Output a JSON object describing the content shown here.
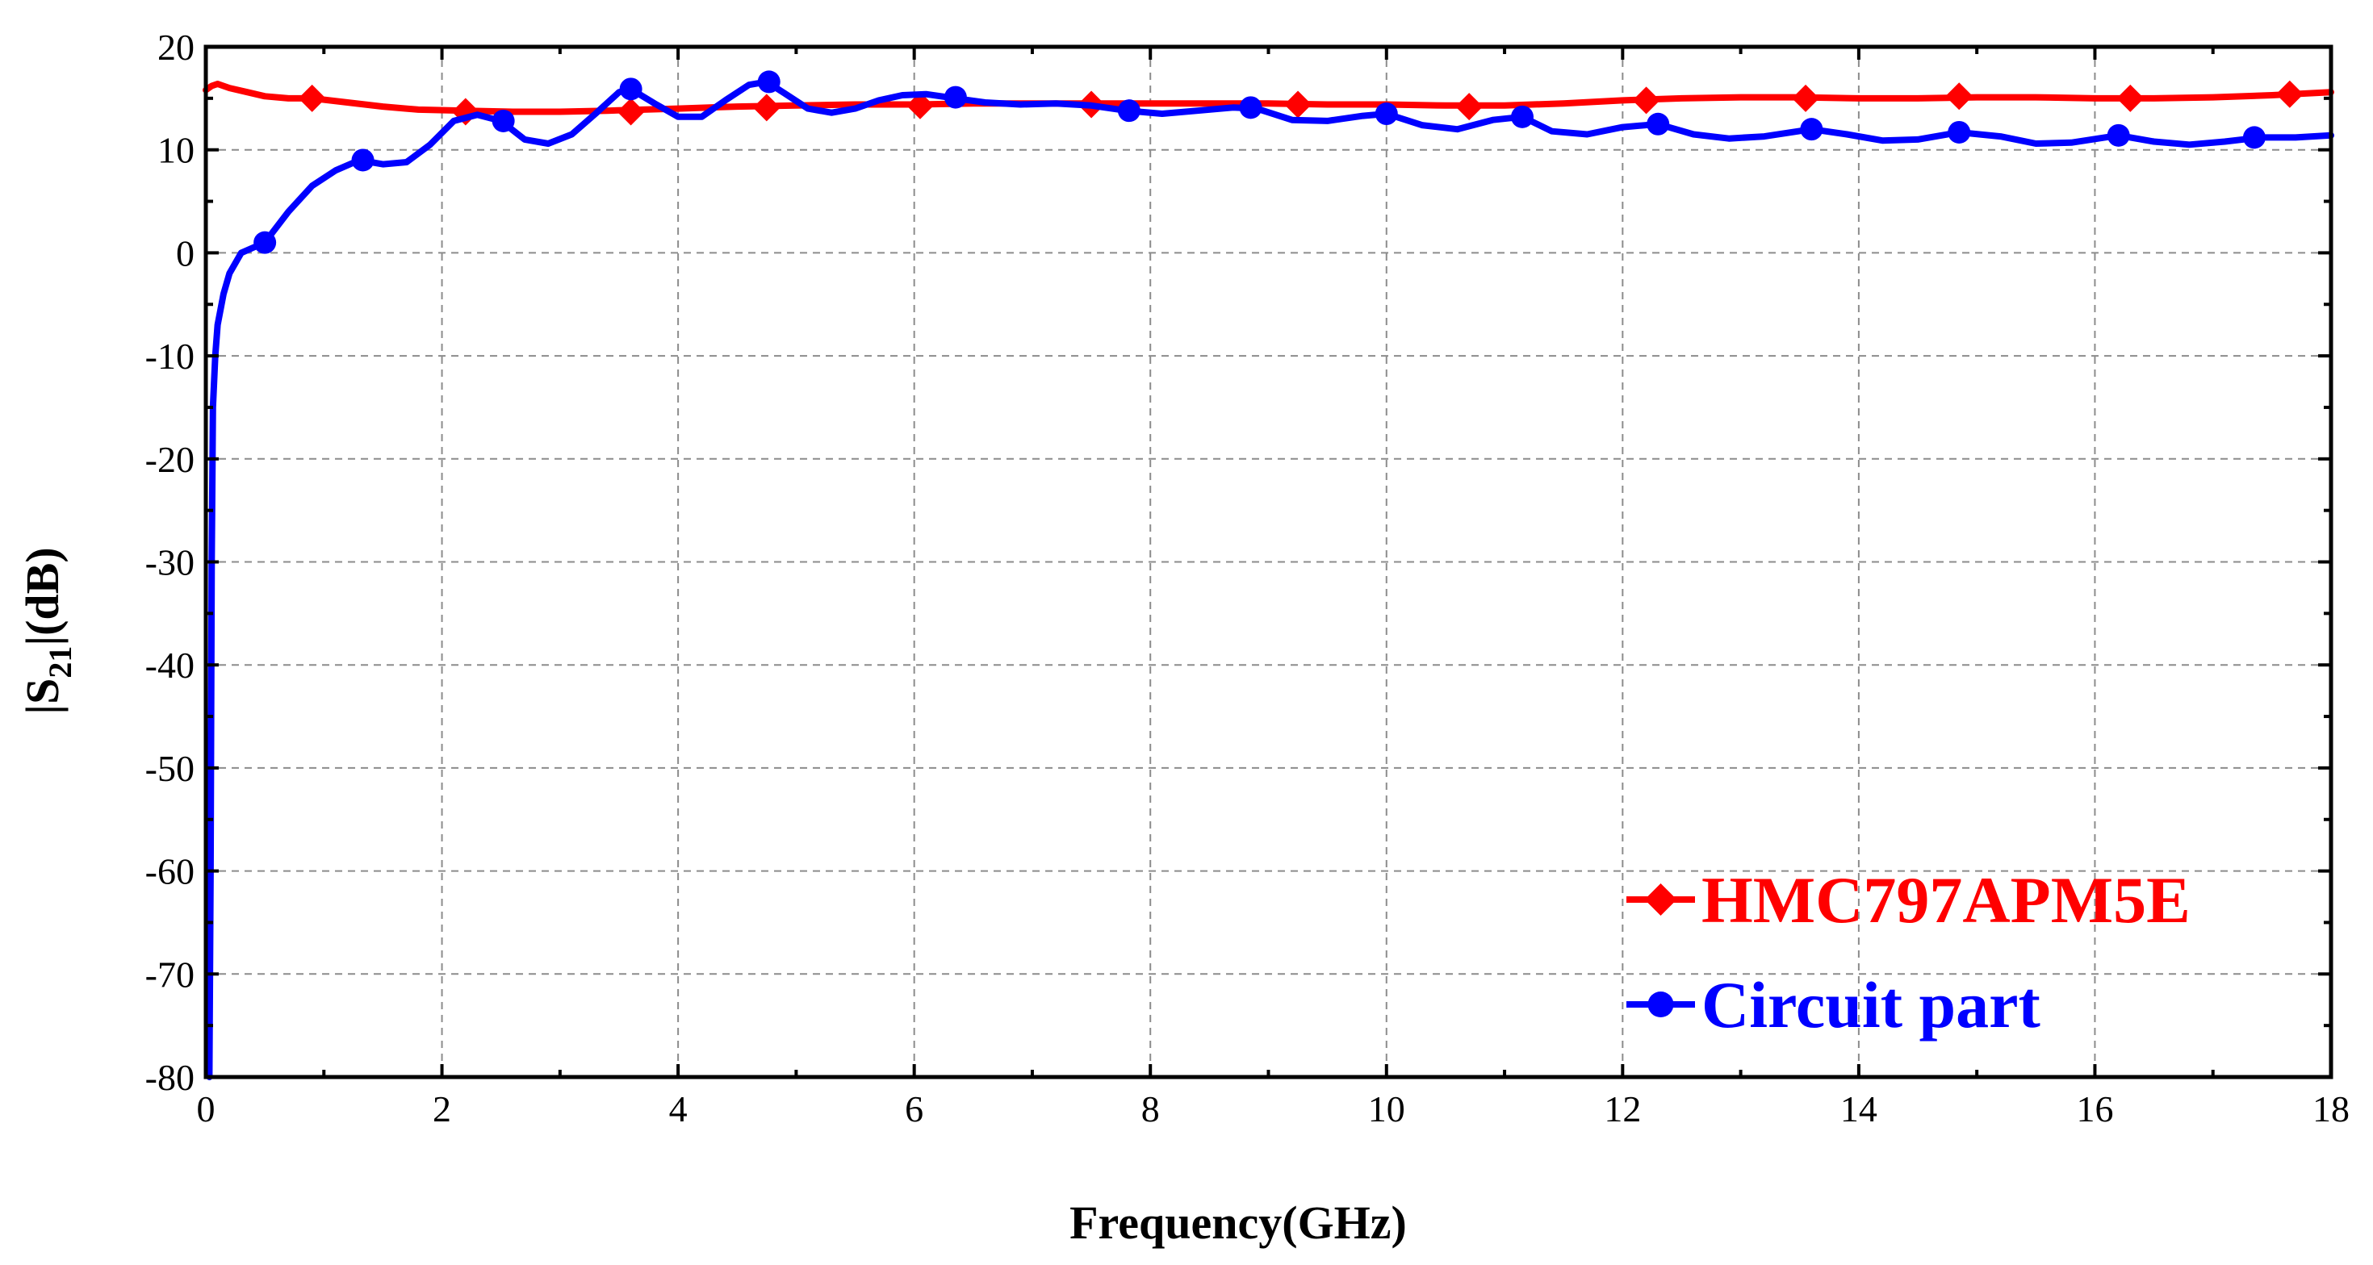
{
  "chart_data": {
    "type": "line",
    "xlabel": "Frequency(GHz)",
    "ylabel_main": "|S",
    "ylabel_sub": "21",
    "ylabel_tail": "|(dB)",
    "xlim": [
      0,
      18
    ],
    "ylim": [
      -80,
      20
    ],
    "x_ticks": [
      0,
      2,
      4,
      6,
      8,
      10,
      12,
      14,
      16,
      18
    ],
    "x_tick_labels": [
      "0",
      "2",
      "4",
      "6",
      "8",
      "10",
      "12",
      "14",
      "16",
      "18"
    ],
    "y_ticks": [
      -80,
      -70,
      -60,
      -50,
      -40,
      -30,
      -20,
      -10,
      0,
      10,
      20
    ],
    "y_tick_labels": [
      "-80",
      "-70",
      "-60",
      "-50",
      "-40",
      "-30",
      "-20",
      "-10",
      "0",
      "10",
      "20"
    ],
    "grid": true,
    "legend_position": "bottom-right",
    "series": [
      {
        "name": "HMC797APM5E",
        "color": "#ff0000",
        "marker": "diamond",
        "curve_x": [
          0,
          0.05,
          0.1,
          0.2,
          0.35,
          0.5,
          0.7,
          0.9,
          1.2,
          1.5,
          1.8,
          2.2,
          2.6,
          3.0,
          3.4,
          3.7,
          4.0,
          4.5,
          5.0,
          5.5,
          6.0,
          6.5,
          7.0,
          7.5,
          8.0,
          8.5,
          9.0,
          9.5,
          10.0,
          10.5,
          11.0,
          11.5,
          12.0,
          12.5,
          13.0,
          13.5,
          14.0,
          14.5,
          15.0,
          15.5,
          16.0,
          16.5,
          17.0,
          17.5,
          18.0
        ],
        "curve_y": [
          15.8,
          16.2,
          16.4,
          16.0,
          15.6,
          15.2,
          15.0,
          15.0,
          14.6,
          14.2,
          13.9,
          13.8,
          13.7,
          13.7,
          13.8,
          13.9,
          14.0,
          14.2,
          14.3,
          14.4,
          14.4,
          14.5,
          14.5,
          14.5,
          14.5,
          14.5,
          14.5,
          14.4,
          14.4,
          14.3,
          14.3,
          14.5,
          14.8,
          15.0,
          15.1,
          15.1,
          15.0,
          15.0,
          15.1,
          15.1,
          15.0,
          15.0,
          15.1,
          15.3,
          15.6
        ],
        "marker_x": [
          0.9,
          2.2,
          3.6,
          4.75,
          6.05,
          7.5,
          9.25,
          10.7,
          12.2,
          13.55,
          14.85,
          16.3,
          17.65
        ],
        "marker_y": [
          15.0,
          13.7,
          13.7,
          14.1,
          14.3,
          14.4,
          14.4,
          14.2,
          14.8,
          15.0,
          15.2,
          15.0,
          15.4
        ]
      },
      {
        "name": "Circuit part",
        "color": "#0000ff",
        "marker": "circle",
        "curve_x": [
          0.03,
          0.04,
          0.05,
          0.06,
          0.08,
          0.1,
          0.15,
          0.2,
          0.3,
          0.4,
          0.5,
          0.7,
          0.9,
          1.1,
          1.3,
          1.5,
          1.7,
          1.9,
          2.1,
          2.3,
          2.5,
          2.7,
          2.9,
          3.1,
          3.3,
          3.5,
          3.6,
          3.8,
          4.0,
          4.2,
          4.4,
          4.6,
          4.75,
          4.9,
          5.1,
          5.3,
          5.5,
          5.7,
          5.9,
          6.1,
          6.35,
          6.6,
          6.9,
          7.2,
          7.5,
          7.8,
          8.1,
          8.4,
          8.7,
          8.9,
          9.2,
          9.5,
          9.8,
          10.0,
          10.3,
          10.6,
          10.9,
          11.15,
          11.4,
          11.7,
          12.0,
          12.3,
          12.6,
          12.9,
          13.2,
          13.6,
          13.9,
          14.2,
          14.5,
          14.85,
          15.2,
          15.5,
          15.8,
          16.2,
          16.5,
          16.8,
          17.1,
          17.4,
          17.7,
          18.0
        ],
        "curve_y": [
          -80,
          -60,
          -30,
          -15,
          -10,
          -7,
          -4,
          -2,
          0,
          0.5,
          1,
          4,
          6.5,
          8,
          9,
          8.6,
          8.8,
          10.5,
          12.8,
          13.4,
          12.8,
          11.0,
          10.6,
          11.5,
          13.5,
          15.6,
          15.9,
          14.5,
          13.2,
          13.2,
          14.8,
          16.3,
          16.6,
          15.5,
          14.0,
          13.6,
          14.0,
          14.8,
          15.3,
          15.4,
          15.0,
          14.6,
          14.4,
          14.5,
          14.3,
          13.8,
          13.5,
          13.8,
          14.1,
          14.0,
          12.9,
          12.8,
          13.3,
          13.5,
          12.4,
          12.0,
          12.9,
          13.2,
          11.8,
          11.5,
          12.2,
          12.5,
          11.5,
          11.1,
          11.3,
          12.0,
          11.5,
          10.9,
          11.0,
          11.7,
          11.3,
          10.6,
          10.7,
          11.4,
          10.8,
          10.5,
          10.8,
          11.2,
          11.2,
          11.4
        ],
        "marker_x": [
          0.5,
          1.33,
          2.52,
          3.6,
          4.77,
          6.35,
          7.82,
          8.85,
          10.0,
          11.15,
          12.3,
          13.6,
          14.85,
          16.2,
          17.35
        ],
        "marker_y": [
          1.0,
          9.0,
          12.8,
          15.9,
          16.6,
          15.1,
          13.8,
          14.1,
          13.5,
          13.2,
          12.5,
          12.0,
          11.7,
          11.4,
          11.2
        ]
      }
    ]
  }
}
